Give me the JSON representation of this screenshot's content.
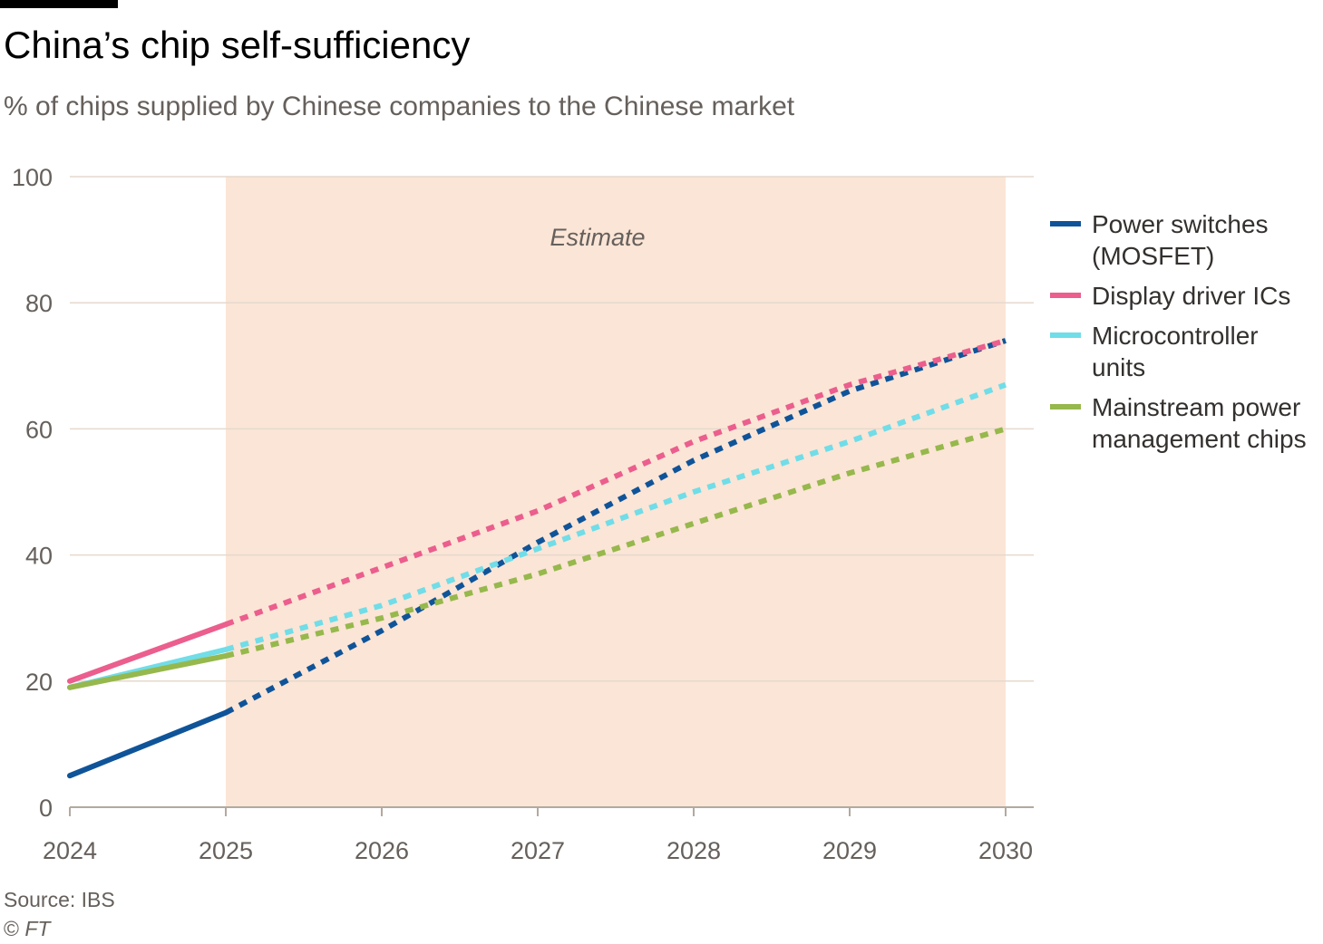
{
  "title": "China’s chip self-sufficiency",
  "subtitle": "% of chips supplied by Chinese companies to the Chinese market",
  "source": "Source: IBS",
  "copyright_symbol": "©",
  "copyright_org": "FT",
  "chart_data": {
    "type": "line",
    "title": "China’s chip self-sufficiency",
    "subtitle": "% of chips supplied by Chinese companies to the Chinese market",
    "xlabel": "",
    "ylabel": "",
    "x": [
      2024,
      2025,
      2026,
      2027,
      2028,
      2029,
      2030
    ],
    "xlim": [
      2024,
      2030
    ],
    "ylim": [
      0,
      100
    ],
    "yticks": [
      0,
      20,
      40,
      60,
      80,
      100
    ],
    "grid": "horizontal",
    "legend_position": "right",
    "estimate_region": {
      "label": "Estimate",
      "from": 2025,
      "to": 2030,
      "color": "#fbe5d6"
    },
    "series": [
      {
        "name": "Power switches (MOSFET)",
        "label_lines": "Power switches\n(MOSFET)",
        "color": "#0f5499",
        "values": [
          5,
          15,
          28,
          42,
          55,
          66,
          74
        ]
      },
      {
        "name": "Display driver ICs",
        "label_lines": "Display driver ICs",
        "color": "#eb5e8d",
        "values": [
          20,
          29,
          38,
          47,
          58,
          67,
          74
        ]
      },
      {
        "name": "Microcontroller units",
        "label_lines": "Microcontroller\nunits",
        "color": "#70dde8",
        "values": [
          19,
          25,
          32,
          41,
          50,
          58,
          67
        ]
      },
      {
        "name": "Mainstream power management chips",
        "label_lines": "Mainstream power\nmanagement chips",
        "color": "#96b84c",
        "values": [
          19,
          24,
          30,
          37,
          45,
          53,
          60
        ]
      }
    ]
  }
}
